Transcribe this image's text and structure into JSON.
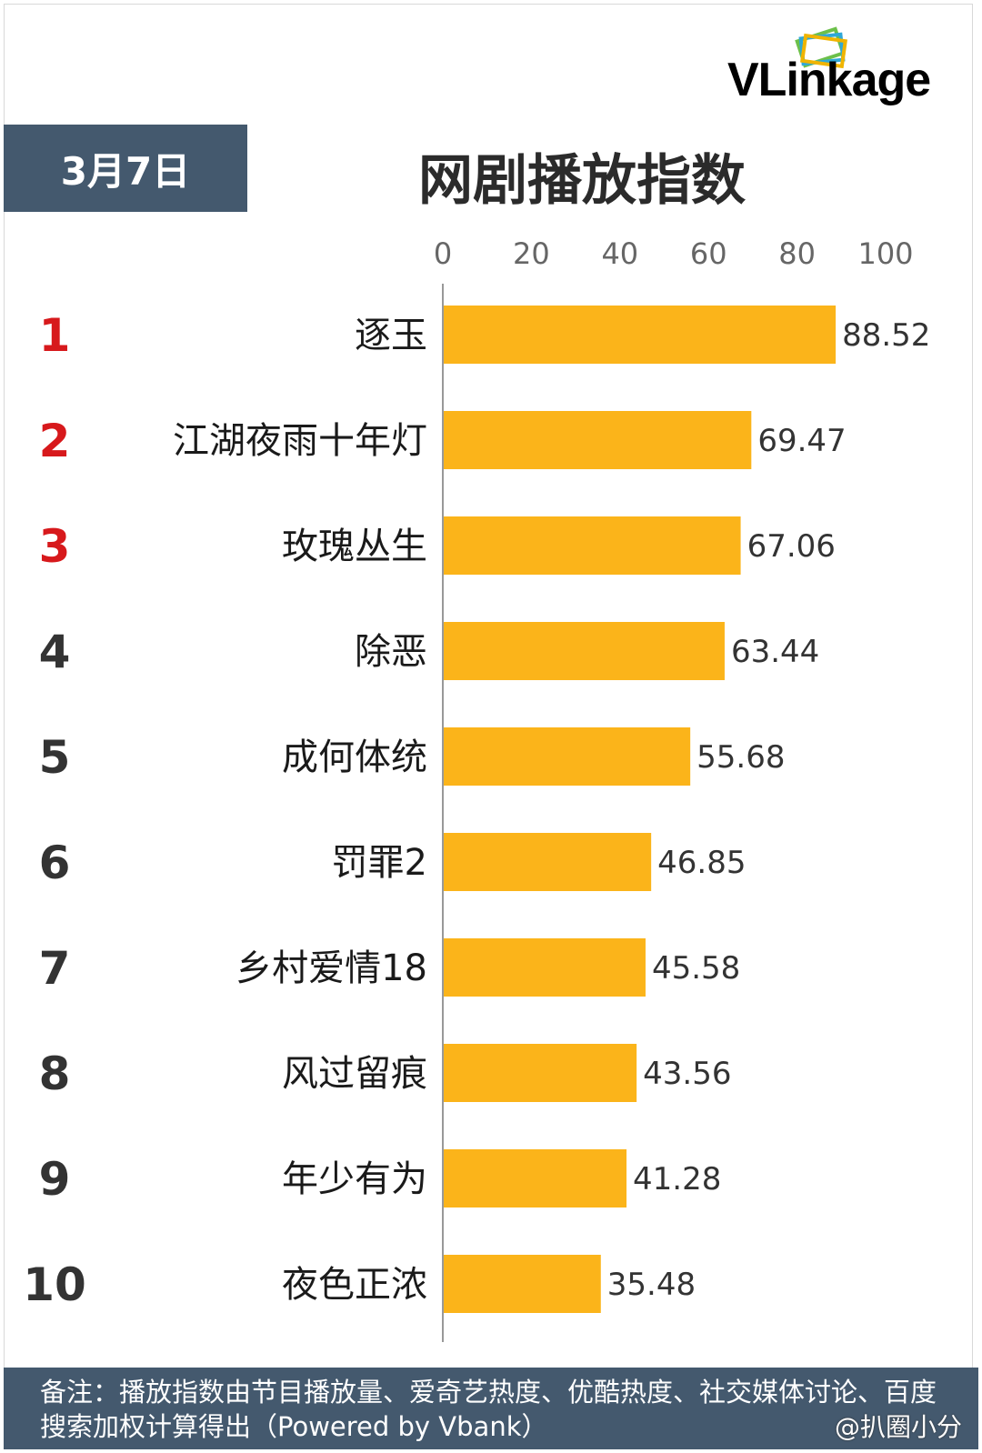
{
  "logo": {
    "brand": "VLinkage"
  },
  "header": {
    "date": "3月7日",
    "title": "网剧播放指数"
  },
  "chart_data": {
    "type": "bar",
    "orientation": "horizontal",
    "title": "网剧播放指数",
    "xlim": [
      0,
      100
    ],
    "xticks": [
      "0",
      "20",
      "40",
      "60",
      "80",
      "100"
    ],
    "ranks": [
      "1",
      "2",
      "3",
      "4",
      "5",
      "6",
      "7",
      "8",
      "9",
      "10"
    ],
    "categories": [
      "逐玉",
      "江湖夜雨十年灯",
      "玫瑰丛生",
      "除恶",
      "成何体统",
      "罚罪2",
      "乡村爱情18",
      "风过留痕",
      "年少有为",
      "夜色正浓"
    ],
    "values": [
      88.52,
      69.47,
      67.06,
      63.44,
      55.68,
      46.85,
      45.58,
      43.56,
      41.28,
      35.48
    ],
    "value_labels": [
      "88.52",
      "69.47",
      "67.06",
      "63.44",
      "55.68",
      "46.85",
      "45.58",
      "43.56",
      "41.28",
      "35.48"
    ],
    "bar_color": "#fbb41a",
    "top_rank_color": "#d7191c",
    "rank_color": "#333333",
    "grid": false
  },
  "footer": {
    "note": "备注：播放指数由节目播放量、爱奇艺热度、优酷热度、社交媒体讨论、百度搜索加权计算得出（Powered by Vbank）"
  },
  "watermark": "@扒圈小分"
}
